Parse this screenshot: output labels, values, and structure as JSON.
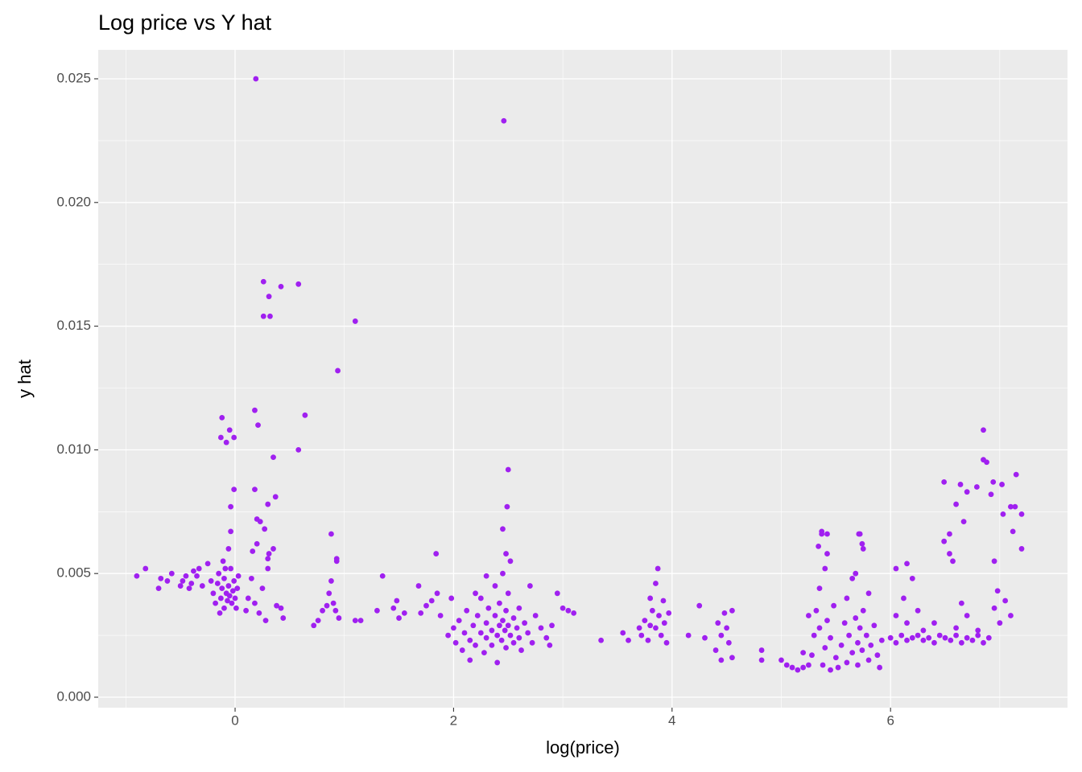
{
  "chart_data": {
    "type": "scatter",
    "title": "Log price vs Y hat",
    "x_label": "log(price)",
    "y_label": "y hat",
    "color": "#a020f0",
    "grid": true,
    "xlim": [
      -1.253,
      7.62
    ],
    "ylim": [
      -0.000423,
      0.02617
    ],
    "xticks": [
      0,
      2,
      4,
      6
    ],
    "yticks": [
      {
        "value": 0,
        "label": "0.000"
      },
      0.005,
      {
        "value": 0.01,
        "label": "0.010"
      },
      0.015,
      {
        "value": 0.02,
        "label": "0.020"
      },
      0.025
    ],
    "x": [
      0.19,
      2.46,
      0.26,
      0.58,
      0.42,
      0.31,
      0.26,
      0.32,
      1.1,
      0.94,
      0.18,
      -0.12,
      0.64,
      0.21,
      -0.05,
      -0.13,
      -0.01,
      -0.08,
      0.58,
      6.85,
      0.35,
      2.5,
      6.85,
      6.88,
      7.15,
      6.94,
      6.49,
      7.02,
      6.64,
      6.79,
      6.7,
      -0.01,
      0.18,
      0.37,
      6.92,
      6.6,
      7.1,
      7.14,
      2.49,
      -0.04,
      7.2,
      7.03,
      0.3,
      0.2,
      0.23,
      6.67,
      7.12,
      2.45,
      5.37,
      5.71,
      5.42,
      6.54,
      -0.04,
      0.88,
      0.27,
      5.34,
      6.49,
      7.2,
      5.74,
      6.54,
      1.84,
      0.16,
      0.31,
      2.48,
      6.95,
      0.93,
      6.57,
      6.15,
      -0.9,
      -0.82,
      -0.7,
      -0.68,
      -0.62,
      -0.58,
      -0.5,
      -0.48,
      -0.45,
      -0.42,
      -0.4,
      -0.38,
      -0.35,
      -0.33,
      -0.3,
      -0.25,
      -0.22,
      -0.2,
      -0.18,
      -0.16,
      -0.15,
      -0.13,
      -0.12,
      -0.1,
      -0.1,
      -0.08,
      -0.07,
      -0.06,
      -0.05,
      -0.04,
      -0.03,
      -0.02,
      -0.01,
      0,
      0.01,
      0.02,
      -0.14,
      -0.09,
      -0.06,
      -0.11,
      0.03,
      0.12,
      0.15,
      0.18,
      0.22,
      0.25,
      0.28,
      0.3,
      0.3,
      0.35,
      0.38,
      0.42,
      0.44,
      0.1,
      0.2,
      0.72,
      0.76,
      0.8,
      0.84,
      0.86,
      0.88,
      0.9,
      0.92,
      0.95,
      0.93,
      1.1,
      1.15,
      1.35,
      1.3,
      1.45,
      1.48,
      1.5,
      1.55,
      1.68,
      1.7,
      1.75,
      1.8,
      1.85,
      1.88,
      1.95,
      2.0,
      2.02,
      2.05,
      2.08,
      2.1,
      2.12,
      2.15,
      2.15,
      2.18,
      2.2,
      2.22,
      2.25,
      2.25,
      2.28,
      2.3,
      2.3,
      2.32,
      2.35,
      2.35,
      2.38,
      2.38,
      2.4,
      2.4,
      2.42,
      2.42,
      2.44,
      2.45,
      2.45,
      2.47,
      2.48,
      2.48,
      2.5,
      2.5,
      2.52,
      2.52,
      2.55,
      2.55,
      2.58,
      2.6,
      2.6,
      2.62,
      2.65,
      2.68,
      2.7,
      2.72,
      2.75,
      2.8,
      2.85,
      2.9,
      2.95,
      3.0,
      3.05,
      3.1,
      2.88,
      2.3,
      2.2,
      1.98,
      3.35,
      3.55,
      3.6,
      3.7,
      3.72,
      3.75,
      3.78,
      3.8,
      3.82,
      3.85,
      3.85,
      3.87,
      3.88,
      3.9,
      3.92,
      3.93,
      3.95,
      3.97,
      3.8,
      4.15,
      4.25,
      4.3,
      4.4,
      4.42,
      4.45,
      4.48,
      4.5,
      4.52,
      4.55,
      4.55,
      4.45,
      4.82,
      4.82,
      5.0,
      5.05,
      5.1,
      5.15,
      5.2,
      5.2,
      5.25,
      5.25,
      5.28,
      5.3,
      5.32,
      5.35,
      5.35,
      5.37,
      5.38,
      5.4,
      5.4,
      5.42,
      5.42,
      5.45,
      5.45,
      5.48,
      5.5,
      5.52,
      5.55,
      5.58,
      5.6,
      5.6,
      5.62,
      5.65,
      5.65,
      5.68,
      5.68,
      5.7,
      5.7,
      5.72,
      5.72,
      5.74,
      5.75,
      5.75,
      5.78,
      5.8,
      5.8,
      5.82,
      5.85,
      5.88,
      5.9,
      5.92,
      6.0,
      6.05,
      6.1,
      6.15,
      6.2,
      6.25,
      6.3,
      6.35,
      6.4,
      6.45,
      6.5,
      6.55,
      6.6,
      6.65,
      6.7,
      6.75,
      6.8,
      6.85,
      6.9,
      6.05,
      6.05,
      6.12,
      6.15,
      6.2,
      6.25,
      6.3,
      6.4,
      6.6,
      6.65,
      6.7,
      6.8,
      6.95,
      6.98,
      7.0,
      7.05,
      7.1
    ],
    "values": [
      0.025,
      0.0233,
      0.0168,
      0.0167,
      0.0166,
      0.0162,
      0.0154,
      0.0154,
      0.0152,
      0.0132,
      0.0116,
      0.0113,
      0.0114,
      0.011,
      0.0108,
      0.0105,
      0.0105,
      0.0103,
      0.01,
      0.0108,
      0.0097,
      0.0092,
      0.0096,
      0.0095,
      0.009,
      0.0087,
      0.0087,
      0.0086,
      0.0086,
      0.0085,
      0.0083,
      0.0084,
      0.0084,
      0.0081,
      0.0082,
      0.0078,
      0.0077,
      0.0077,
      0.0077,
      0.0077,
      0.0074,
      0.0074,
      0.0078,
      0.0072,
      0.0071,
      0.0071,
      0.0067,
      0.0068,
      0.0067,
      0.0066,
      0.0066,
      0.0066,
      0.0067,
      0.0066,
      0.0068,
      0.0061,
      0.0063,
      0.006,
      0.0062,
      0.0058,
      0.0058,
      0.0059,
      0.0058,
      0.0058,
      0.0055,
      0.0056,
      0.0055,
      0.0054,
      0.0049,
      0.0052,
      0.0044,
      0.0048,
      0.0047,
      0.005,
      0.0045,
      0.0047,
      0.0049,
      0.0044,
      0.0046,
      0.0051,
      0.0049,
      0.0052,
      0.0045,
      0.0054,
      0.0047,
      0.0042,
      0.0038,
      0.0046,
      0.005,
      0.004,
      0.0044,
      0.0036,
      0.0048,
      0.0042,
      0.0039,
      0.0045,
      0.0041,
      0.0052,
      0.0038,
      0.0043,
      0.0047,
      0.004,
      0.0036,
      0.0044,
      0.0034,
      0.0052,
      0.006,
      0.0055,
      0.0049,
      0.004,
      0.0048,
      0.0038,
      0.0034,
      0.0044,
      0.0031,
      0.0052,
      0.0056,
      0.006,
      0.0037,
      0.0036,
      0.0032,
      0.0035,
      0.0062,
      0.0029,
      0.0031,
      0.0035,
      0.0037,
      0.0042,
      0.0047,
      0.0038,
      0.0035,
      0.0032,
      0.0055,
      0.0031,
      0.0031,
      0.0049,
      0.0035,
      0.0036,
      0.0039,
      0.0032,
      0.0034,
      0.0045,
      0.0034,
      0.0037,
      0.0039,
      0.0042,
      0.0033,
      0.0025,
      0.0028,
      0.0022,
      0.0031,
      0.0019,
      0.0026,
      0.0035,
      0.0023,
      0.0015,
      0.0029,
      0.0021,
      0.0033,
      0.0026,
      0.004,
      0.0018,
      0.003,
      0.0024,
      0.0036,
      0.0027,
      0.0021,
      0.0033,
      0.0045,
      0.0025,
      0.0014,
      0.0029,
      0.0038,
      0.0023,
      0.0031,
      0.005,
      0.0027,
      0.0035,
      0.002,
      0.0029,
      0.0042,
      0.0025,
      0.0055,
      0.0032,
      0.0022,
      0.0028,
      0.0036,
      0.0024,
      0.0019,
      0.003,
      0.0026,
      0.0045,
      0.0022,
      0.0033,
      0.0028,
      0.0024,
      0.0029,
      0.0042,
      0.0036,
      0.0035,
      0.0034,
      0.0021,
      0.0049,
      0.0042,
      0.004,
      0.0023,
      0.0026,
      0.0023,
      0.0028,
      0.0025,
      0.0031,
      0.0023,
      0.004,
      0.0035,
      0.0028,
      0.0046,
      0.0052,
      0.0033,
      0.0025,
      0.0039,
      0.003,
      0.0022,
      0.0034,
      0.0029,
      0.0025,
      0.0037,
      0.0024,
      0.0019,
      0.003,
      0.0025,
      0.0034,
      0.0028,
      0.0022,
      0.0035,
      0.0016,
      0.0015,
      0.0019,
      0.0015,
      0.0015,
      0.0013,
      0.0012,
      0.0011,
      0.0012,
      0.0018,
      0.0013,
      0.0033,
      0.0017,
      0.0025,
      0.0035,
      0.0028,
      0.0044,
      0.0066,
      0.0013,
      0.0052,
      0.002,
      0.0058,
      0.0031,
      0.0024,
      0.0011,
      0.0037,
      0.0016,
      0.0012,
      0.0021,
      0.003,
      0.004,
      0.0014,
      0.0025,
      0.0048,
      0.0018,
      0.0032,
      0.005,
      0.0022,
      0.0013,
      0.0028,
      0.0066,
      0.0019,
      0.0035,
      0.006,
      0.0025,
      0.0015,
      0.0042,
      0.0021,
      0.0029,
      0.0017,
      0.0012,
      0.0023,
      0.0024,
      0.0022,
      0.0025,
      0.0023,
      0.0024,
      0.0025,
      0.0023,
      0.0024,
      0.0022,
      0.0025,
      0.0024,
      0.0023,
      0.0025,
      0.0022,
      0.0024,
      0.0023,
      0.0025,
      0.0022,
      0.0024,
      0.0033,
      0.0052,
      0.004,
      0.003,
      0.0048,
      0.0035,
      0.0027,
      0.003,
      0.0028,
      0.0038,
      0.0033,
      0.0027,
      0.0036,
      0.0043,
      0.003,
      0.0039,
      0.0033
    ]
  }
}
